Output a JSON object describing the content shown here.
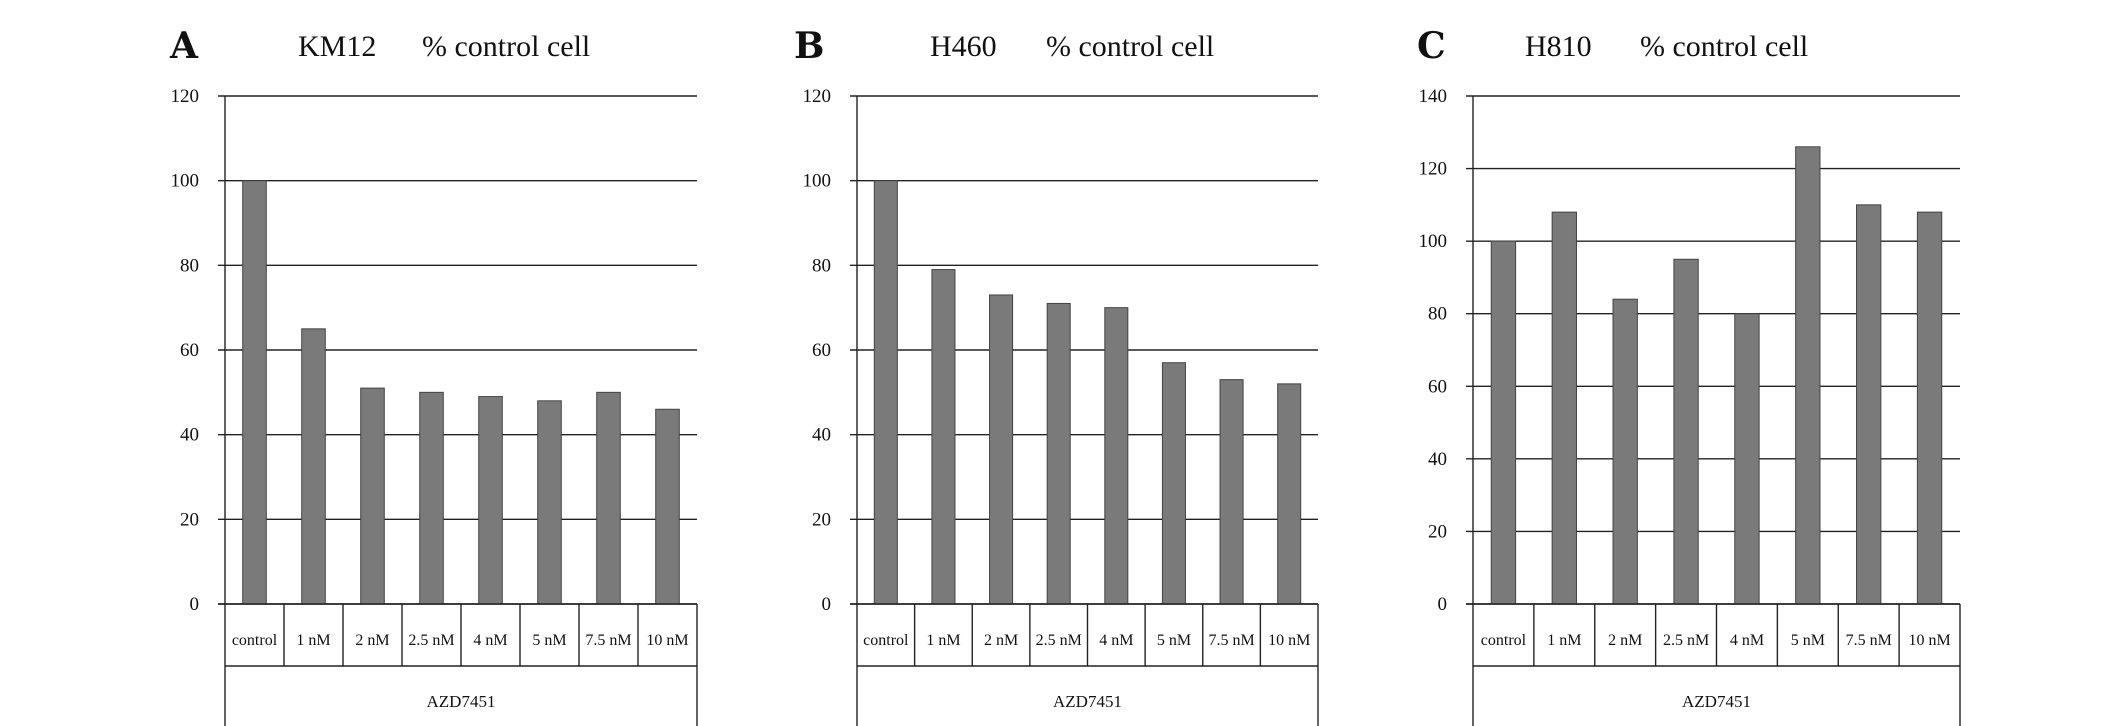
{
  "chart_data": [
    {
      "type": "bar",
      "panel": "A",
      "title": "KM12",
      "subtitle": "% control  cell",
      "group_label": "AZD7451",
      "categories": [
        "control",
        "1 nM",
        "2 nM",
        "2.5 nM",
        "4 nM",
        "5 nM",
        "7.5 nM",
        "10 nM"
      ],
      "values": [
        100,
        65,
        51,
        50,
        49,
        48,
        50,
        46
      ],
      "ylim": [
        0,
        120
      ],
      "yticks": [
        0,
        20,
        40,
        60,
        80,
        100,
        120
      ],
      "bar_color": "#7a7a7a",
      "grid": true
    },
    {
      "type": "bar",
      "panel": "B",
      "title": "H460",
      "subtitle": "% control  cell",
      "group_label": "AZD7451",
      "categories": [
        "control",
        "1 nM",
        "2 nM",
        "2.5 nM",
        "4 nM",
        "5 nM",
        "7.5 nM",
        "10 nM"
      ],
      "values": [
        100,
        79,
        73,
        71,
        70,
        57,
        53,
        52
      ],
      "ylim": [
        0,
        120
      ],
      "yticks": [
        0,
        20,
        40,
        60,
        80,
        100,
        120
      ],
      "bar_color": "#7a7a7a",
      "grid": true
    },
    {
      "type": "bar",
      "panel": "C",
      "title": "H810",
      "subtitle": "% control  cell",
      "group_label": "AZD7451",
      "categories": [
        "control",
        "1 nM",
        "2 nM",
        "2.5 nM",
        "4 nM",
        "5 nM",
        "7.5 nM",
        "10 nM"
      ],
      "values": [
        100,
        108,
        84,
        95,
        80,
        126,
        110,
        108
      ],
      "ylim": [
        0,
        140
      ],
      "yticks": [
        0,
        20,
        40,
        60,
        80,
        100,
        120,
        140
      ],
      "bar_color": "#7a7a7a",
      "grid": true
    }
  ]
}
